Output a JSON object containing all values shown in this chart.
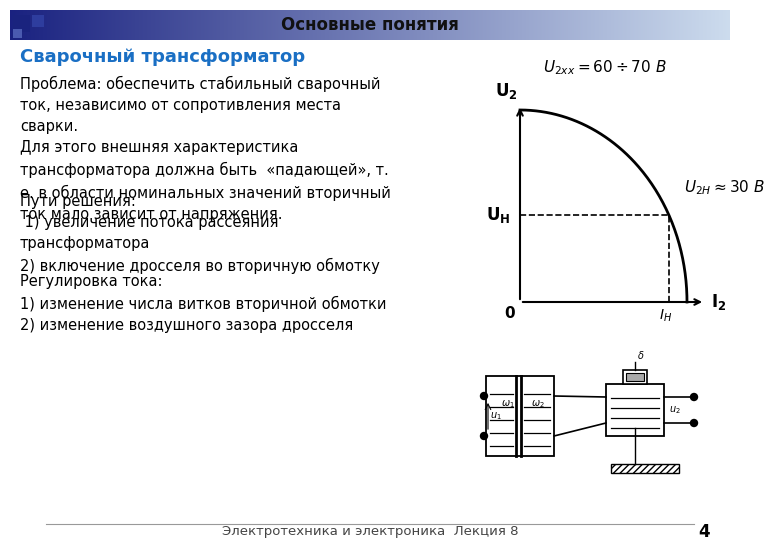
{
  "title": "Основные понятия",
  "slide_title": "Сварочный трансформатор",
  "slide_title_color": "#1a6fc4",
  "footer_text": "Электротехника и электроника  Лекция 8",
  "page_number": "4",
  "graph_formula_top": "$U_{2xx} = 60 \\div 70\\ B$",
  "graph_label_u2h": "$U_{2H} \\approx 30\\ B$",
  "graph_ylabel": "$\\mathbf{U_2}$",
  "graph_xlabel": "$\\mathbf{I_2}$",
  "graph_uh_label": "$\\mathbf{U_H}$",
  "graph_ih_label": "$I_H$",
  "graph_zero_label": "0",
  "text_block1": "Проблема: обеспечить стабильный сварочный\nток, независимо от сопротивления места\nсварки.\nДля этого внешняя характеристика\nтрансформатора должна быть  «падающей», т.\nе. в области номинальных значений вторичный\nток мало зависит от напряжения.",
  "text_block2": "Пути решения:\n 1) увеличение потока рассеяния\nтрансформатора\n2) включение дросселя во вторичную обмотку",
  "text_block3": "Регулировка тока:\n1) изменение числа витков вторичной обмотки\n2) изменение воздушного зазора дросселя"
}
